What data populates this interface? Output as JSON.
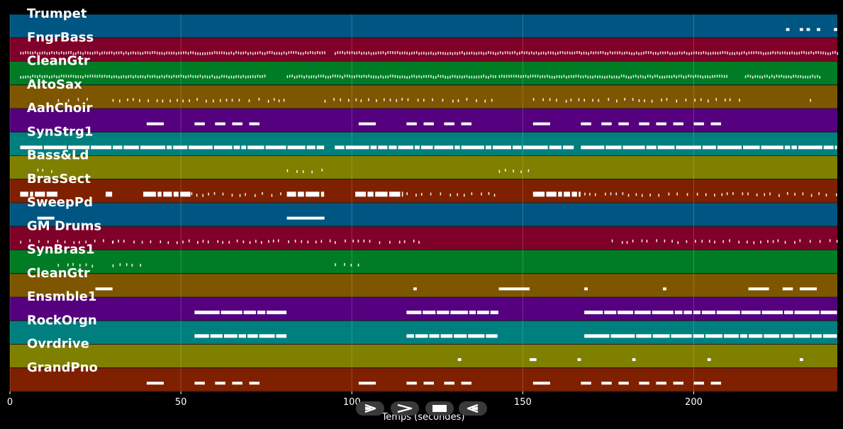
{
  "chart_data": {
    "type": "piano-roll",
    "xlabel": "Temps (secondes)",
    "xlim": [
      0,
      242
    ],
    "x_ticks": [
      0,
      50,
      100,
      150,
      200
    ],
    "grid": true,
    "tracks": [
      {
        "name": "Trumpet",
        "color": "#005682",
        "notes": [
          [
            227,
            1
          ],
          [
            231,
            1
          ],
          [
            233,
            1
          ],
          [
            236,
            1
          ],
          [
            241,
            1
          ]
        ]
      },
      {
        "name": "FngrBass",
        "color": "#7f0028",
        "segments": [
          [
            3,
            92,
            "dense"
          ],
          [
            95,
            167,
            "dense"
          ],
          [
            167,
            242,
            "dense"
          ]
        ]
      },
      {
        "name": "CleanGtr",
        "color": "#007d24",
        "segments": [
          [
            3,
            75,
            "dense"
          ],
          [
            81,
            142,
            "dense"
          ],
          [
            143,
            210,
            "dense"
          ],
          [
            215,
            237,
            "dense"
          ]
        ]
      },
      {
        "name": "AltoSax",
        "color": "#7f5600",
        "segments": [
          [
            14,
            24,
            "sparse"
          ],
          [
            30,
            80,
            "sparse"
          ],
          [
            92,
            142,
            "sparse"
          ],
          [
            153,
            215,
            "sparse"
          ],
          [
            234,
            236,
            "sparse"
          ]
        ]
      },
      {
        "name": "AahChoir",
        "color": "#55007f",
        "notes": [
          [
            40,
            5
          ],
          [
            54,
            3
          ],
          [
            60,
            3
          ],
          [
            65,
            3
          ],
          [
            70,
            3
          ],
          [
            102,
            5
          ],
          [
            116,
            3
          ],
          [
            121,
            3
          ],
          [
            127,
            3
          ],
          [
            132,
            3
          ],
          [
            153,
            5
          ],
          [
            167,
            3
          ],
          [
            173,
            3
          ],
          [
            178,
            3
          ],
          [
            184,
            3
          ],
          [
            189,
            3
          ],
          [
            194,
            3
          ],
          [
            200,
            3
          ],
          [
            205,
            3
          ]
        ]
      },
      {
        "name": "SynStrg1",
        "color": "#007f7f",
        "segments": [
          [
            3,
            92,
            "sustain"
          ],
          [
            95,
            165,
            "sustain"
          ],
          [
            167,
            242,
            "sustain"
          ]
        ]
      },
      {
        "name": "Bass&Ld",
        "color": "#7f7f00",
        "segments": [
          [
            8,
            13,
            "sparse"
          ],
          [
            81,
            92,
            "sparse"
          ],
          [
            143,
            153,
            "sparse"
          ]
        ]
      },
      {
        "name": "BrasSect",
        "color": "#7f2000",
        "segments": [
          [
            3,
            14,
            "block"
          ],
          [
            28,
            30,
            "block"
          ],
          [
            39,
            53,
            "block"
          ],
          [
            53,
            80,
            "sparse"
          ],
          [
            81,
            92,
            "block"
          ],
          [
            101,
            115,
            "block"
          ],
          [
            116,
            142,
            "sparse"
          ],
          [
            153,
            167,
            "block"
          ],
          [
            168,
            242,
            "sparse"
          ]
        ]
      },
      {
        "name": "SweepPd",
        "color": "#005682",
        "notes": [
          [
            8,
            5
          ],
          [
            81,
            11
          ]
        ]
      },
      {
        "name": "GM Drums",
        "color": "#7f0028",
        "segments": [
          [
            3,
            30,
            "sparse"
          ],
          [
            30,
            120,
            "sparse"
          ],
          [
            176,
            242,
            "sparse"
          ]
        ]
      },
      {
        "name": "SynBras1",
        "color": "#007d24",
        "segments": [
          [
            14,
            24,
            "sparse"
          ],
          [
            30,
            40,
            "sparse"
          ],
          [
            95,
            103,
            "sparse"
          ]
        ]
      },
      {
        "name": "CleanGtr",
        "color": "#7f5600",
        "notes": [
          [
            25,
            5
          ],
          [
            118,
            1
          ],
          [
            143,
            9
          ],
          [
            168,
            1
          ],
          [
            191,
            1
          ],
          [
            216,
            6
          ],
          [
            226,
            3
          ],
          [
            231,
            5
          ]
        ]
      },
      {
        "name": "Ensmble1",
        "color": "#55007f",
        "segments": [
          [
            54,
            81,
            "sustain"
          ],
          [
            116,
            143,
            "sustain"
          ],
          [
            168,
            242,
            "sustain"
          ]
        ]
      },
      {
        "name": "RockOrgn",
        "color": "#007f7f",
        "segments": [
          [
            54,
            81,
            "sustain"
          ],
          [
            116,
            143,
            "sustain"
          ],
          [
            168,
            242,
            "sustain"
          ]
        ]
      },
      {
        "name": "Ovrdrive",
        "color": "#7f7f00",
        "notes": [
          [
            131,
            1
          ],
          [
            152,
            2
          ],
          [
            166,
            1
          ],
          [
            182,
            1
          ],
          [
            204,
            1
          ],
          [
            231,
            1
          ]
        ]
      },
      {
        "name": "GrandPno",
        "color": "#7f2000",
        "notes": [
          [
            40,
            5
          ],
          [
            54,
            3
          ],
          [
            60,
            3
          ],
          [
            65,
            3
          ],
          [
            70,
            3
          ],
          [
            102,
            5
          ],
          [
            116,
            3
          ],
          [
            121,
            3
          ],
          [
            127,
            3
          ],
          [
            132,
            3
          ],
          [
            153,
            5
          ],
          [
            167,
            3
          ],
          [
            173,
            3
          ],
          [
            178,
            3
          ],
          [
            184,
            3
          ],
          [
            189,
            3
          ],
          [
            194,
            3
          ],
          [
            200,
            3
          ],
          [
            205,
            3
          ]
        ]
      }
    ]
  },
  "controls": [
    {
      "name": "play-button",
      "icon": "play-icon"
    },
    {
      "name": "fast-forward-button",
      "icon": "fast-forward-icon"
    },
    {
      "name": "stop-button",
      "icon": "stop-icon"
    },
    {
      "name": "rewind-button",
      "icon": "rewind-icon"
    }
  ]
}
